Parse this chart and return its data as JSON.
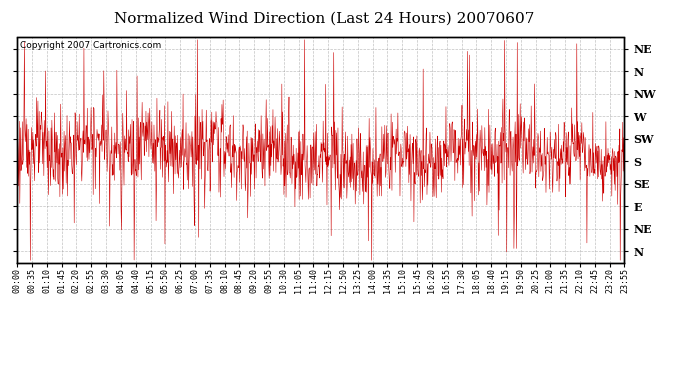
{
  "title": "Normalized Wind Direction (Last 24 Hours) 20070607",
  "copyright": "Copyright 2007 Cartronics.com",
  "line_color": "#cc0000",
  "background_color": "#ffffff",
  "plot_background": "#ffffff",
  "grid_color": "#999999",
  "ytick_labels_right": [
    "NE",
    "N",
    "NW",
    "W",
    "SW",
    "S",
    "SE",
    "E",
    "NE",
    "N"
  ],
  "ytick_positions": [
    9,
    8,
    7,
    6,
    5,
    4,
    3,
    2,
    1,
    0
  ],
  "ylim": [
    -0.5,
    9.5
  ],
  "xtick_labels": [
    "00:00",
    "00:35",
    "01:10",
    "01:45",
    "02:20",
    "02:55",
    "03:30",
    "04:05",
    "04:40",
    "05:15",
    "05:50",
    "06:25",
    "07:00",
    "07:35",
    "08:10",
    "08:45",
    "09:20",
    "09:55",
    "10:30",
    "11:05",
    "11:40",
    "12:15",
    "12:50",
    "13:25",
    "14:00",
    "14:35",
    "15:10",
    "15:45",
    "16:20",
    "16:55",
    "17:30",
    "18:05",
    "18:40",
    "19:15",
    "19:50",
    "20:25",
    "21:00",
    "21:35",
    "22:10",
    "22:45",
    "23:20",
    "23:55"
  ],
  "title_fontsize": 11,
  "copyright_fontsize": 6.5,
  "tick_fontsize": 6,
  "ylabel_fontsize": 8,
  "border_color": "#000000",
  "seed": 123,
  "n_points": 1440,
  "base_mean": 4.2,
  "base_std": 0.8,
  "noise_std": 0.9,
  "spike_amplitude_up": 4.5,
  "spike_amplitude_down": 3.5
}
